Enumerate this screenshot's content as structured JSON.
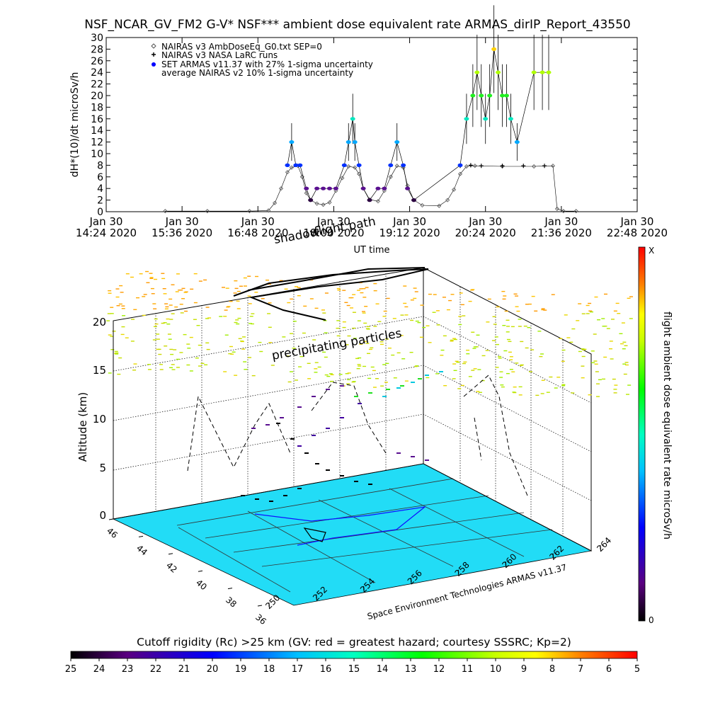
{
  "chart_data": [
    {
      "type": "scatter",
      "title": "NSF_NCAR_GV_FM2 G-V* NSF*** ambient dose equivalent rate ARMAS_dirIP_Report_43550",
      "xlabel": "UT time",
      "ylabel": "dH*(10)/dt microSv/h",
      "ylim": [
        0,
        30
      ],
      "yticks": [
        0,
        2,
        4,
        6,
        8,
        10,
        12,
        14,
        16,
        18,
        20,
        22,
        24,
        26,
        28,
        30
      ],
      "xlim": [
        864,
        1368
      ],
      "xticks": [
        {
          "t": 864,
          "line1": "Jan 30",
          "line2": "14:24 2020"
        },
        {
          "t": 936,
          "line1": "Jan 30",
          "line2": "15:36 2020"
        },
        {
          "t": 1008,
          "line1": "Jan 30",
          "line2": "16:48 2020"
        },
        {
          "t": 1080,
          "line1": "Jan 30",
          "line2": "18:00 2020"
        },
        {
          "t": 1152,
          "line1": "Jan 30",
          "line2": "19:12 2020"
        },
        {
          "t": 1224,
          "line1": "Jan 30",
          "line2": "20:24 2020"
        },
        {
          "t": 1296,
          "line1": "Jan 30",
          "line2": "21:36 2020"
        },
        {
          "t": 1368,
          "line1": "Jan 30",
          "line2": "22:48 2020"
        }
      ],
      "legend_position": "top-left",
      "series": [
        {
          "name": "NAIRAS v3 AmbDoseEq_G0.txt SEP=0",
          "marker": "diamond",
          "color": "#555555",
          "points": [
            [
              920,
              0.1
            ],
            [
              960,
              0.1
            ],
            [
              1000,
              0.1
            ],
            [
              1018,
              0.2
            ],
            [
              1024,
              1.5
            ],
            [
              1030,
              4.0
            ],
            [
              1036,
              6.8
            ],
            [
              1040,
              7.6
            ],
            [
              1046,
              7.9
            ],
            [
              1050,
              6.0
            ],
            [
              1054,
              3.2
            ],
            [
              1058,
              2.0
            ],
            [
              1064,
              1.4
            ],
            [
              1070,
              1.2
            ],
            [
              1076,
              1.6
            ],
            [
              1082,
              3.6
            ],
            [
              1088,
              5.8
            ],
            [
              1094,
              7.8
            ],
            [
              1100,
              7.6
            ],
            [
              1104,
              6.5
            ],
            [
              1108,
              4.0
            ],
            [
              1114,
              2.1
            ],
            [
              1122,
              1.8
            ],
            [
              1128,
              3.6
            ],
            [
              1134,
              6.0
            ],
            [
              1140,
              7.9
            ],
            [
              1146,
              7.6
            ],
            [
              1150,
              4.5
            ],
            [
              1156,
              2.0
            ],
            [
              1164,
              1.1
            ],
            [
              1180,
              1.0
            ],
            [
              1188,
              2.0
            ],
            [
              1194,
              3.8
            ],
            [
              1200,
              6.5
            ],
            [
              1206,
              7.8
            ],
            [
              1214,
              7.9
            ],
            [
              1240,
              7.8
            ],
            [
              1270,
              7.8
            ],
            [
              1288,
              7.9
            ],
            [
              1292,
              0.5
            ],
            [
              1298,
              0.1
            ],
            [
              1310,
              0.1
            ]
          ]
        },
        {
          "name": "NAIRAS v3 NASA LaRC runs",
          "marker": "plus",
          "color": "#000000",
          "points": [
            [
              1200,
              7.9
            ],
            [
              1210,
              8.0
            ],
            [
              1220,
              7.9
            ],
            [
              1240,
              7.9
            ],
            [
              1260,
              7.9
            ],
            [
              1280,
              7.9
            ]
          ]
        },
        {
          "name": "SET ARMAS v11.37 with 27% 1-sigma uncertainty",
          "marker": "dot",
          "color": "#0000ff",
          "points": [
            [
              1036,
              8
            ],
            [
              1040,
              12
            ],
            [
              1044,
              8
            ],
            [
              1048,
              8
            ],
            [
              1054,
              4
            ],
            [
              1058,
              2
            ],
            [
              1064,
              4
            ],
            [
              1070,
              4
            ],
            [
              1076,
              4
            ],
            [
              1082,
              4
            ],
            [
              1090,
              8
            ],
            [
              1094,
              12
            ],
            [
              1098,
              16
            ],
            [
              1100,
              12
            ],
            [
              1104,
              8
            ],
            [
              1108,
              4
            ],
            [
              1114,
              2
            ],
            [
              1122,
              4
            ],
            [
              1128,
              4
            ],
            [
              1134,
              8
            ],
            [
              1140,
              12
            ],
            [
              1146,
              8
            ],
            [
              1150,
              4
            ],
            [
              1156,
              2
            ],
            [
              1200,
              8
            ],
            [
              1206,
              16
            ],
            [
              1212,
              20
            ],
            [
              1216,
              24
            ],
            [
              1220,
              20
            ],
            [
              1224,
              16
            ],
            [
              1228,
              20
            ],
            [
              1232,
              28
            ],
            [
              1236,
              24
            ],
            [
              1240,
              20
            ],
            [
              1244,
              20
            ],
            [
              1248,
              16
            ],
            [
              1254,
              12
            ],
            [
              1270,
              24
            ],
            [
              1278,
              24
            ],
            [
              1284,
              24
            ]
          ],
          "error_pct": 27
        },
        {
          "name": "average NAIRAS v2 10% 1-sigma uncertainty",
          "marker": "none",
          "color": "#000000",
          "points": []
        }
      ]
    },
    {
      "type": "scatter",
      "subtype": "3d-trajectory",
      "zlabel": "Altitude (km)",
      "zticks": [
        0,
        5,
        10,
        15,
        20
      ],
      "lat_ticks": [
        36,
        38,
        40,
        42,
        44,
        46
      ],
      "lon_ticks": [
        250,
        252,
        254,
        256,
        258,
        260,
        262,
        264
      ],
      "annotations": [
        "shadow",
        "flight path",
        "precipitating particles"
      ],
      "credit": "Space Environment Technologies ARMAS v11.37",
      "colorbar_label": "flight ambient dose equivalent rate microSv/h",
      "colorbar_top": "X",
      "colorbar_bottom": "0"
    },
    {
      "type": "colorbar",
      "label": "Cutoff rigidity (Rc) >25 km (GV: red = greatest hazard; courtesy SSSRC; Kp=2)",
      "ticks": [
        "25",
        "24",
        "23",
        "22",
        "21",
        "20",
        "19",
        "18",
        "17",
        "16",
        "15",
        "14",
        "13",
        "12",
        "11",
        "10",
        "9",
        "8",
        "7",
        "6",
        "5"
      ]
    }
  ]
}
